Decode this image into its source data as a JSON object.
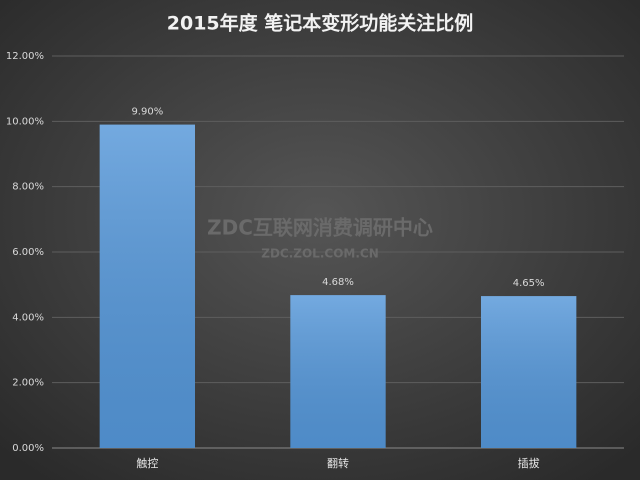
{
  "chart_data": {
    "type": "bar",
    "title": "2015年度 笔记本变形功能关注比例",
    "categories": [
      "触控",
      "翻转",
      "插拔"
    ],
    "values": [
      9.9,
      4.68,
      4.65
    ],
    "value_labels": [
      "9.90%",
      "4.68%",
      "4.65%"
    ],
    "color": "#5597d9",
    "ylim": [
      0,
      12
    ],
    "yticks": [
      {
        "value": 0,
        "label": "0.00%"
      },
      {
        "value": 2,
        "label": "2.00%"
      },
      {
        "value": 4,
        "label": "4.00%"
      },
      {
        "value": 6,
        "label": "6.00%"
      },
      {
        "value": 8,
        "label": "8.00%"
      },
      {
        "value": 10,
        "label": "10.00%"
      },
      {
        "value": 12,
        "label": "12.00%"
      }
    ],
    "grid": true,
    "watermark": [
      "ZDC互联网消费调研中心",
      "ZDC.ZOL.COM.CN"
    ]
  }
}
